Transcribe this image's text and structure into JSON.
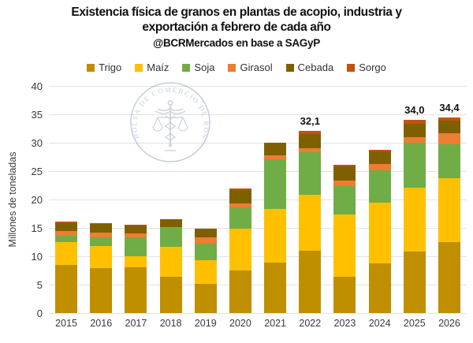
{
  "title": {
    "line1": "Existencia física de granos en plantas de acopio, industria y",
    "line2": "exportación a febrero de cada año",
    "line3": "@BCRMercados en base a SAGyP"
  },
  "watermark": {
    "seal_text": "BOLSA DE COMERCIO DE ROSARIO"
  },
  "chart_data": {
    "type": "bar",
    "stacked": true,
    "title": "Existencia física de granos en plantas de acopio, industria y exportación a febrero de cada año",
    "subtitle": "@BCRMercados en base a SAGyP",
    "xlabel": "",
    "ylabel": "Millones de toneladas",
    "ylim": [
      0,
      40
    ],
    "yticks": [
      0,
      5,
      10,
      15,
      20,
      25,
      30,
      35,
      40
    ],
    "grid": true,
    "legend_position": "top",
    "categories": [
      "2015",
      "2016",
      "2017",
      "2018",
      "2019",
      "2020",
      "2021",
      "2022",
      "2023",
      "2024",
      "2025",
      "2026"
    ],
    "series": [
      {
        "name": "Trigo",
        "color": "#BF8F00",
        "values": [
          8.5,
          7.9,
          8.0,
          6.4,
          5.2,
          7.5,
          8.9,
          11.0,
          6.4,
          8.8,
          10.9,
          12.5
        ]
      },
      {
        "name": "Maíz",
        "color": "#FFC000",
        "values": [
          4.0,
          3.9,
          2.0,
          5.2,
          4.1,
          7.3,
          9.5,
          9.9,
          11.0,
          10.6,
          11.2,
          11.2
        ]
      },
      {
        "name": "Soja",
        "color": "#70AD47",
        "values": [
          1.1,
          1.6,
          3.3,
          3.4,
          2.9,
          3.8,
          8.7,
          7.5,
          5.0,
          5.8,
          7.9,
          6.0
        ]
      },
      {
        "name": "Girasol",
        "color": "#ED7D31",
        "values": [
          0.8,
          0.8,
          0.8,
          0.2,
          1.1,
          0.7,
          0.7,
          0.7,
          0.9,
          1.1,
          1.0,
          2.0
        ]
      },
      {
        "name": "Cebada",
        "color": "#7F6000",
        "values": [
          1.4,
          1.5,
          1.3,
          1.3,
          1.5,
          2.4,
          2.2,
          2.5,
          2.5,
          2.2,
          2.4,
          2.2
        ]
      },
      {
        "name": "Sorgo",
        "color": "#C2530F",
        "values": [
          0.3,
          0.2,
          0.2,
          0.1,
          0.1,
          0.2,
          0.0,
          0.5,
          0.3,
          0.3,
          0.6,
          0.5
        ]
      }
    ],
    "totals": [
      16.1,
      15.9,
      15.6,
      16.6,
      14.9,
      21.9,
      30.0,
      32.1,
      26.1,
      28.8,
      34.0,
      34.4
    ],
    "bar_labels": [
      "",
      "",
      "",
      "",
      "",
      "",
      "",
      "32,1",
      "",
      "",
      "34,0",
      "34,4"
    ]
  }
}
